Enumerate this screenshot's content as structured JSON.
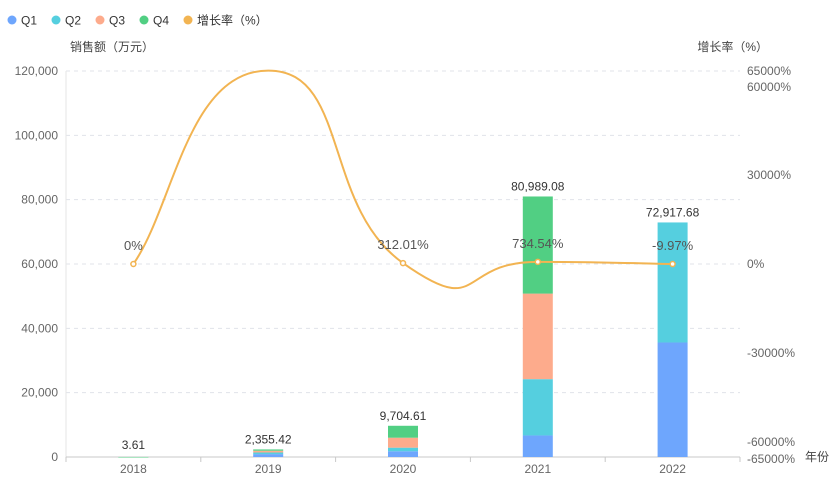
{
  "chart_data": {
    "type": "bar",
    "stacked": true,
    "categories": [
      "2018",
      "2019",
      "2020",
      "2021",
      "2022"
    ],
    "series": [
      {
        "name": "Q1",
        "color": "#6ea6fd",
        "values": [
          0.9,
          900,
          1800,
          6700,
          35600
        ]
      },
      {
        "name": "Q2",
        "color": "#55cfdf",
        "values": [
          0.9,
          500,
          1100,
          17500,
          37317.68
        ]
      },
      {
        "name": "Q3",
        "color": "#fdab8c",
        "values": [
          0.9,
          550,
          3100,
          26600,
          0
        ]
      },
      {
        "name": "Q4",
        "color": "#51cf83",
        "values": [
          0.91,
          405.42,
          3704.61,
          30189.08,
          0
        ]
      }
    ],
    "totals": [
      3.61,
      2355.42,
      9704.61,
      80989.08,
      72917.68
    ],
    "total_labels": [
      "3.61",
      "2,355.42",
      "9,704.61",
      "80,989.08",
      "72,917.68"
    ],
    "line_series": {
      "name": "增长率（%）",
      "color": "#f2b452",
      "values": [
        0,
        65147,
        312.01,
        734.54,
        -9.97
      ],
      "labels": [
        "0%",
        "",
        "312.01%",
        "734.54%",
        "-9.97%"
      ]
    },
    "y_left": {
      "label": "销售额（万元）",
      "min": 0,
      "max": 120000,
      "ticks": [
        0,
        20000,
        40000,
        60000,
        80000,
        100000,
        120000
      ],
      "tick_labels": [
        "0",
        "20,000",
        "40,000",
        "60,000",
        "80,000",
        "100,000",
        "120,000"
      ]
    },
    "y_right": {
      "label": "增长率（%）",
      "min": -65000,
      "max": 65000,
      "tick_values": [
        65000,
        60000,
        30000,
        0,
        -30000,
        -60000,
        -65000
      ],
      "tick_labels": [
        "65000%",
        "60000%",
        "30000%",
        "0%",
        "-30000%",
        "-60000%",
        "-65000%"
      ]
    },
    "x_label": "年份",
    "legend_position": "top-left",
    "grid": true
  }
}
